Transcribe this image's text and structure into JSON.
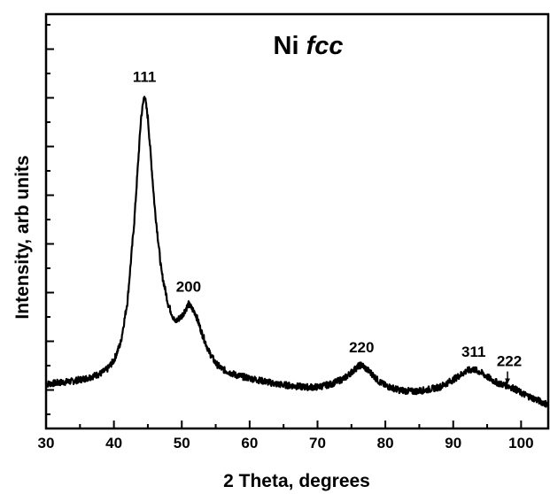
{
  "chart_data": {
    "type": "line",
    "title": "Ni",
    "title_italic": "fcc",
    "xlabel": "2 Theta, degrees",
    "ylabel": "Intensity, arb units",
    "xlim": [
      30,
      104
    ],
    "ylim": [
      -0.15,
      1.25
    ],
    "grid": false,
    "legend": "none",
    "x_ticks": [
      "30",
      "40",
      "50",
      "60",
      "70",
      "80",
      "90",
      "100"
    ],
    "series": [
      {
        "x": [
          30,
          32,
          34,
          36,
          38,
          39,
          40,
          41,
          42,
          43,
          44,
          44.5,
          45,
          46,
          47,
          48,
          49,
          50,
          51,
          52,
          53,
          54,
          55,
          56,
          58,
          60,
          62,
          64,
          66,
          68,
          70,
          72,
          74,
          75,
          76,
          76.5,
          77,
          78,
          79,
          80,
          82,
          84,
          86,
          88,
          90,
          91,
          92,
          93,
          94,
          95,
          96,
          97,
          98,
          99,
          100,
          102,
          104
        ],
        "y": [
          0.0,
          0.005,
          0.01,
          0.02,
          0.035,
          0.05,
          0.08,
          0.14,
          0.28,
          0.55,
          0.9,
          0.98,
          0.9,
          0.6,
          0.38,
          0.27,
          0.21,
          0.23,
          0.27,
          0.24,
          0.17,
          0.11,
          0.07,
          0.05,
          0.03,
          0.02,
          0.01,
          0.0,
          -0.005,
          -0.01,
          -0.01,
          0.0,
          0.02,
          0.04,
          0.06,
          0.065,
          0.055,
          0.035,
          0.01,
          -0.005,
          -0.02,
          -0.025,
          -0.02,
          -0.01,
          0.015,
          0.03,
          0.045,
          0.05,
          0.04,
          0.025,
          0.01,
          0.0,
          -0.005,
          -0.015,
          -0.03,
          -0.05,
          -0.07
        ]
      }
    ],
    "annotations": [
      {
        "text": "111",
        "x": 44.5,
        "y": 0.98
      },
      {
        "text": "200",
        "x": 51,
        "y": 0.27
      },
      {
        "text": "220",
        "x": 76.5,
        "y": 0.065
      },
      {
        "text": "311",
        "x": 93,
        "y": 0.05
      },
      {
        "text": "222",
        "x": 98,
        "y": -0.005,
        "arrow": true
      }
    ]
  }
}
